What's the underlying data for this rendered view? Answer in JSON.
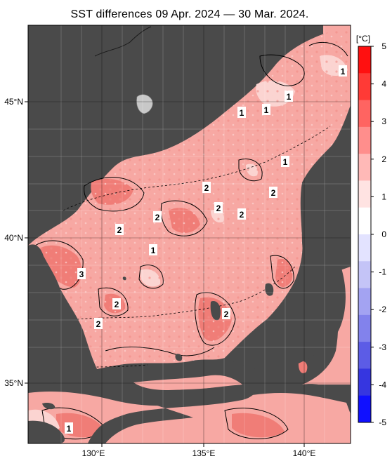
{
  "title": "SST differences 09 Apr. 2024 — 30 Mar. 2024.",
  "colorbar": {
    "unit": "[°C]",
    "ticks": [
      "5",
      "4",
      "3",
      "2",
      "1",
      "0",
      "-1",
      "-2",
      "-3",
      "-4",
      "-5"
    ],
    "colors": [
      "#ff1010",
      "#ff3a36",
      "#ff6461",
      "#ff8e8c",
      "#ffb9b7",
      "#ffe3e2",
      "#ffffff",
      "#e3e3ff",
      "#c4c4f7",
      "#a3a3f2",
      "#8282ec",
      "#5c5ce6",
      "#3636e0",
      "#1010ff"
    ]
  },
  "axes": {
    "lat_labels": [
      "45°N",
      "40°N",
      "35°N"
    ],
    "lon_labels": [
      "130°E",
      "135°E",
      "140°E"
    ]
  },
  "contour_labels": [
    "1",
    "1",
    "1",
    "1",
    "1",
    "2",
    "2",
    "2",
    "2",
    "2",
    "2",
    "1",
    "3",
    "2",
    "2",
    "2",
    "1"
  ],
  "colors": {
    "land": "#4a4a4a",
    "sea_base": "#f7a8a3",
    "sea_warm": "#f07d77",
    "sea_light": "#fbd4d1",
    "contour": "#000000"
  }
}
